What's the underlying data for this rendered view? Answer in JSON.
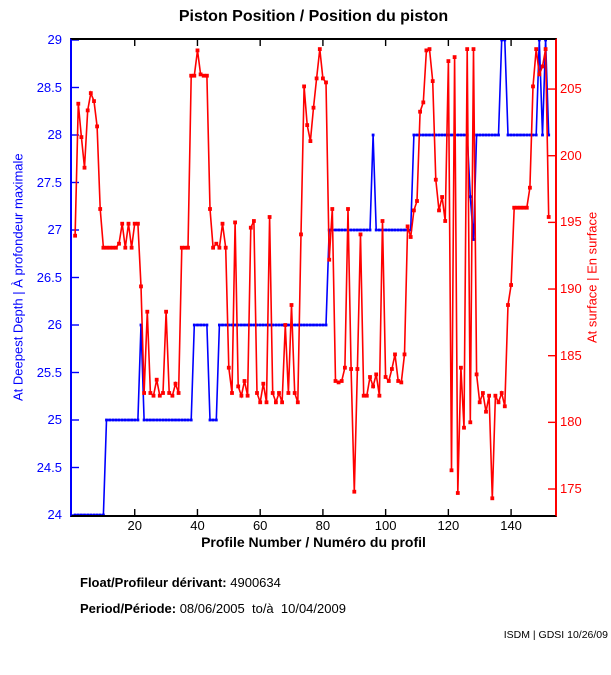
{
  "title": "Piston Position / Position du piston",
  "xlabel": "Profile Number / Numéro du profil",
  "left_axis": {
    "label": "At Deepest Depth | À profondeur maximale",
    "color": "#0000ff",
    "range": [
      24,
      29
    ],
    "ticks": [
      24,
      24.5,
      25,
      25.5,
      26,
      26.5,
      27,
      27.5,
      28,
      28.5,
      29
    ]
  },
  "right_axis": {
    "label": "At surface | En surface",
    "color": "#ff0000",
    "range": [
      173.05,
      208.68
    ],
    "ticks": [
      175,
      180,
      185,
      190,
      195,
      200,
      205
    ]
  },
  "x_axis": {
    "range": [
      0,
      154
    ],
    "ticks": [
      20,
      40,
      60,
      80,
      100,
      120,
      140
    ]
  },
  "chart_data": {
    "type": "line",
    "x_start": 1,
    "x_step": 1,
    "series": [
      {
        "name": "piston-position-at-deepest-depth",
        "axis": "left",
        "color": "#0000ff",
        "marker_size": 2.8,
        "values": [
          24,
          24,
          24,
          24,
          24,
          24,
          24,
          24,
          24,
          24,
          25,
          25,
          25,
          25,
          25,
          25,
          25,
          25,
          25,
          25,
          25,
          26,
          25,
          25,
          25,
          25,
          25,
          25,
          25,
          25,
          25,
          25,
          25,
          25,
          25,
          25,
          25,
          25,
          26,
          26,
          26,
          26,
          26,
          25,
          25,
          25,
          26,
          26,
          26,
          26,
          26,
          26,
          26,
          26,
          26,
          26,
          26,
          26,
          26,
          26,
          26,
          26,
          26,
          26,
          26,
          26,
          26,
          26,
          26,
          26,
          26,
          26,
          26,
          26,
          26,
          26,
          26,
          26,
          26,
          26,
          26,
          27,
          27,
          27,
          27,
          27,
          27,
          27,
          27,
          27,
          27,
          27,
          27,
          27,
          27,
          28,
          27,
          27,
          27,
          27,
          27,
          27,
          27,
          27,
          27,
          27,
          27,
          27,
          28,
          28,
          28,
          28,
          28,
          28,
          28,
          28,
          28,
          28,
          28,
          28,
          28,
          28,
          28,
          28,
          28,
          28,
          27.35,
          26.9,
          28,
          28,
          28,
          28,
          28,
          28,
          28,
          28,
          29,
          29,
          28,
          28,
          28,
          28,
          28,
          28,
          28,
          28,
          28,
          28,
          29,
          28,
          29,
          28
        ]
      },
      {
        "name": "piston-position-at-surface",
        "axis": "right",
        "color": "#ff0000",
        "marker_size": 3.8,
        "values": [
          194.0,
          203.9,
          201.4,
          199.1,
          203.4,
          204.7,
          204.1,
          202.2,
          196.0,
          193.1,
          193.1,
          193.1,
          193.1,
          193.1,
          193.4,
          194.9,
          193.1,
          194.9,
          193.1,
          194.9,
          194.9,
          190.2,
          182.2,
          188.3,
          182.2,
          182.0,
          183.2,
          182.0,
          182.2,
          188.3,
          182.2,
          182.0,
          182.9,
          182.2,
          193.1,
          193.1,
          193.1,
          206.0,
          206.0,
          207.9,
          206.1,
          206.0,
          206.0,
          196.0,
          193.1,
          193.4,
          193.1,
          194.9,
          193.1,
          184.1,
          182.2,
          195.0,
          182.7,
          182.0,
          183.1,
          182.0,
          194.6,
          195.1,
          182.2,
          181.5,
          182.9,
          181.5,
          195.4,
          182.2,
          181.5,
          182.2,
          181.5,
          187.3,
          182.2,
          188.8,
          182.2,
          181.5,
          194.1,
          205.2,
          202.3,
          201.1,
          203.6,
          205.8,
          208.0,
          205.8,
          205.5,
          192.2,
          196.0,
          183.1,
          183.0,
          183.1,
          184.1,
          196.0,
          184.0,
          174.8,
          184.0,
          194.1,
          182.0,
          182.0,
          183.4,
          182.7,
          183.6,
          182.0,
          195.1,
          183.4,
          183.1,
          184.0,
          185.1,
          183.1,
          183.0,
          185.1,
          194.7,
          193.9,
          195.9,
          196.6,
          203.3,
          204.0,
          207.9,
          208.0,
          205.6,
          198.2,
          195.9,
          196.9,
          195.1,
          207.1,
          176.4,
          207.4,
          174.7,
          184.1,
          179.6,
          208.0,
          180.0,
          208.0,
          183.6,
          181.5,
          182.2,
          180.8,
          182.0,
          174.3,
          182.0,
          181.5,
          182.2,
          181.2,
          188.8,
          190.3,
          196.1,
          196.1,
          196.1,
          196.1,
          196.1,
          197.6,
          205.2,
          208.0,
          206.1,
          206.7,
          208.0,
          195.4
        ]
      }
    ]
  },
  "footer": {
    "float_label": "Float/Profileur dérivant:",
    "float_value": " 4900634",
    "period_label": "Period/Période:",
    "period_value": " 08/06/2005  to/à  10/04/2009",
    "credit": "ISDM | GDSI 10/26/09"
  }
}
